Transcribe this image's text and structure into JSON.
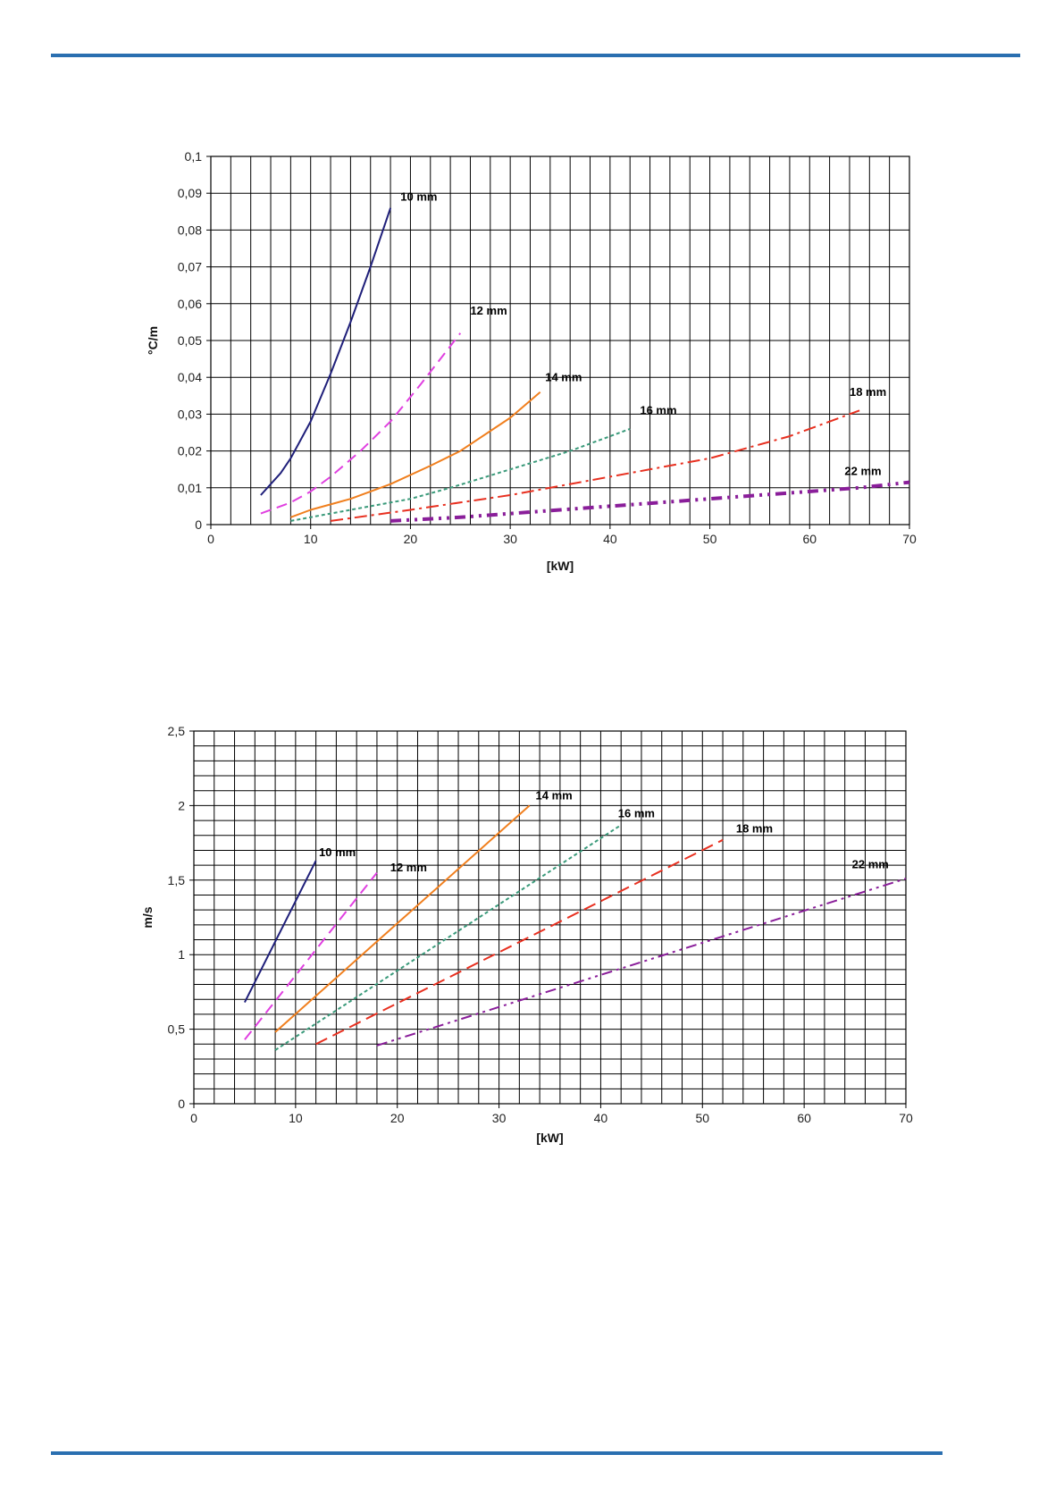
{
  "page": {
    "rule_color": "#2a6fb0"
  },
  "chart_data": [
    {
      "type": "line",
      "title": "",
      "xlabel": "[kW]",
      "ylabel": "°C/m",
      "xlim": [
        0,
        70
      ],
      "ylim": [
        0,
        0.1
      ],
      "x_ticks": [
        "0",
        "10",
        "20",
        "30",
        "40",
        "50",
        "60",
        "70"
      ],
      "y_ticks": [
        "0",
        "0,01",
        "0,02",
        "0,03",
        "0,04",
        "0,05",
        "0,06",
        "0,07",
        "0,08",
        "0,09",
        "0,1"
      ],
      "grid": true,
      "legend": "inline-labels",
      "series": [
        {
          "name": "10 mm",
          "color": "#1f1f7a",
          "x": [
            5,
            7,
            8,
            10,
            12,
            14,
            16,
            18
          ],
          "y": [
            0.008,
            0.014,
            0.018,
            0.028,
            0.041,
            0.055,
            0.07,
            0.086
          ]
        },
        {
          "name": "12 mm",
          "color": "#e040e0",
          "x": [
            5,
            8,
            10,
            12,
            15,
            18,
            21,
            25
          ],
          "y": [
            0.003,
            0.006,
            0.009,
            0.013,
            0.02,
            0.028,
            0.038,
            0.052
          ]
        },
        {
          "name": "14 mm",
          "color": "#f07f1e",
          "x": [
            8,
            10,
            14,
            18,
            22,
            25,
            30,
            33
          ],
          "y": [
            0.002,
            0.004,
            0.007,
            0.011,
            0.016,
            0.02,
            0.029,
            0.036
          ]
        },
        {
          "name": "16 mm",
          "color": "#3a9a7a",
          "x": [
            8,
            12,
            16,
            20,
            24,
            30,
            36,
            42
          ],
          "y": [
            0.001,
            0.003,
            0.005,
            0.007,
            0.01,
            0.015,
            0.02,
            0.026
          ]
        },
        {
          "name": "18 mm",
          "color": "#e83020",
          "x": [
            12,
            20,
            30,
            40,
            50,
            58,
            65
          ],
          "y": [
            0.001,
            0.004,
            0.008,
            0.013,
            0.018,
            0.024,
            0.031
          ]
        },
        {
          "name": "22 mm",
          "color": "#8a1e9a",
          "x": [
            18,
            25,
            35,
            45,
            55,
            65,
            70
          ],
          "y": [
            0.001,
            0.002,
            0.004,
            0.006,
            0.008,
            0.01,
            0.0115
          ]
        }
      ],
      "labels": [
        {
          "series": "10 mm",
          "x": 19,
          "y": 0.088
        },
        {
          "series": "12 mm",
          "x": 26,
          "y": 0.057
        },
        {
          "series": "14 mm",
          "x": 33.5,
          "y": 0.039
        },
        {
          "series": "16 mm",
          "x": 43,
          "y": 0.03
        },
        {
          "series": "18 mm",
          "x": 64,
          "y": 0.035
        },
        {
          "series": "22 mm",
          "x": 63.5,
          "y": 0.0135
        }
      ]
    },
    {
      "type": "line",
      "title": "",
      "xlabel": "[kW]",
      "ylabel": "m/s",
      "xlim": [
        0,
        70
      ],
      "ylim": [
        0,
        2.5
      ],
      "x_ticks": [
        "0",
        "10",
        "20",
        "30",
        "40",
        "50",
        "60",
        "70"
      ],
      "y_ticks": [
        "0",
        "0,5",
        "1",
        "1,5",
        "2",
        "2,5"
      ],
      "grid": true,
      "legend": "inline-labels",
      "series": [
        {
          "name": "10 mm",
          "color": "#1f1f7a",
          "x": [
            5,
            12
          ],
          "y": [
            0.68,
            1.63
          ]
        },
        {
          "name": "12 mm",
          "color": "#e040e0",
          "x": [
            5,
            18
          ],
          "y": [
            0.43,
            1.55
          ]
        },
        {
          "name": "14 mm",
          "color": "#f07f1e",
          "x": [
            8,
            33
          ],
          "y": [
            0.48,
            2.0
          ]
        },
        {
          "name": "16 mm",
          "color": "#3a9a7a",
          "x": [
            8,
            42
          ],
          "y": [
            0.36,
            1.87
          ]
        },
        {
          "name": "18 mm",
          "color": "#e83020",
          "x": [
            12,
            52
          ],
          "y": [
            0.4,
            1.77
          ]
        },
        {
          "name": "22 mm",
          "color": "#8a1e9a",
          "x": [
            18,
            70
          ],
          "y": [
            0.39,
            1.51
          ]
        }
      ],
      "labels": [
        {
          "series": "10 mm",
          "x": 12.3,
          "y": 1.66
        },
        {
          "series": "12 mm",
          "x": 19.3,
          "y": 1.56
        },
        {
          "series": "14 mm",
          "x": 33.6,
          "y": 2.04
        },
        {
          "series": "16 mm",
          "x": 41.7,
          "y": 1.92
        },
        {
          "series": "18 mm",
          "x": 53.3,
          "y": 1.82
        },
        {
          "series": "22 mm",
          "x": 64.7,
          "y": 1.58
        }
      ]
    }
  ]
}
